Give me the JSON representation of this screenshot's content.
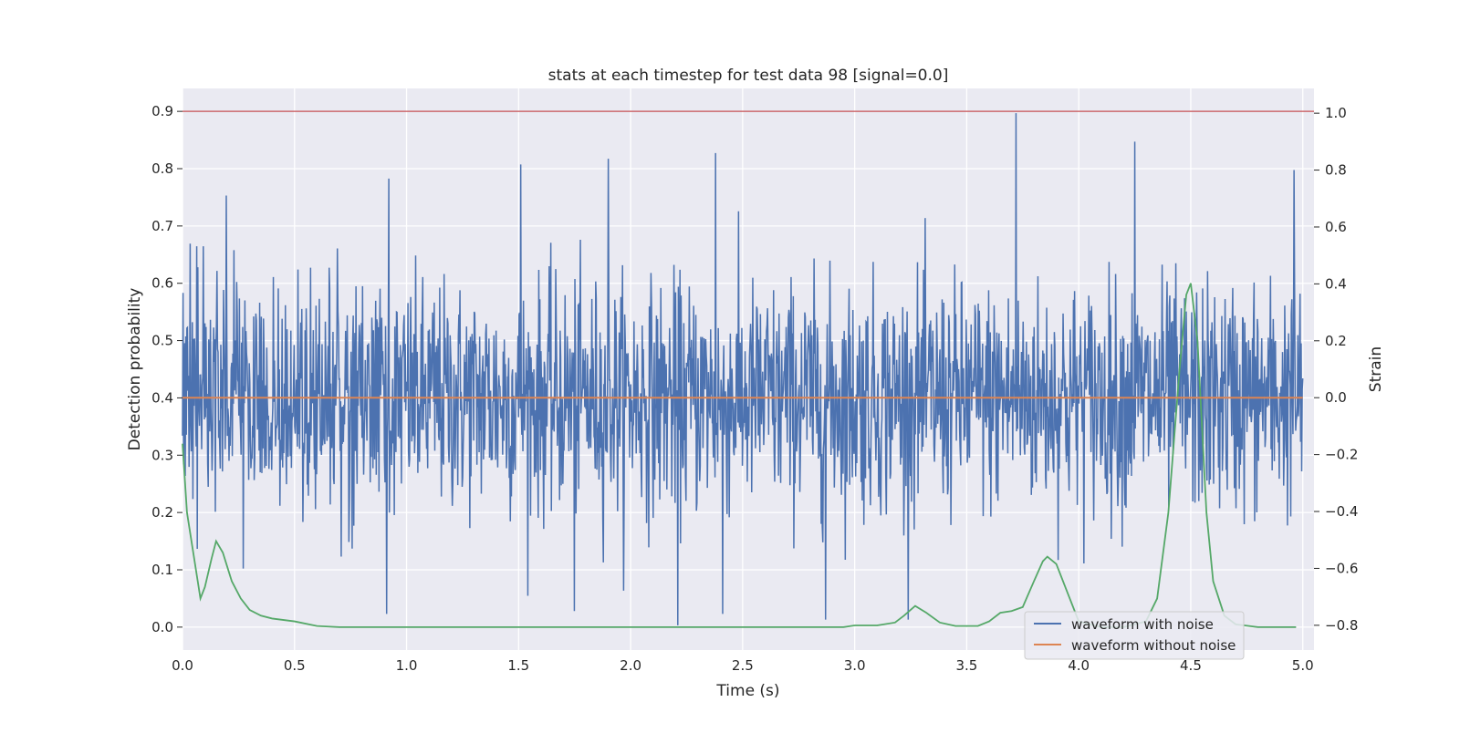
{
  "chart_data": {
    "type": "line",
    "title": "stats at each timestep for test data 98 [signal=0.0]",
    "xlabel": "Time (s)",
    "ylabel_left": "Detection probability",
    "ylabel_right": "Strain",
    "xlim": [
      0.0,
      5.05
    ],
    "ylim_left": [
      -0.04,
      0.94
    ],
    "ylim_right": [
      -0.887,
      1.087
    ],
    "x_ticks": [
      "0.0",
      "0.5",
      "1.0",
      "1.5",
      "2.0",
      "2.5",
      "3.0",
      "3.5",
      "4.0",
      "4.5",
      "5.0"
    ],
    "y_ticks_left": [
      "0.0",
      "0.1",
      "0.2",
      "0.3",
      "0.4",
      "0.5",
      "0.6",
      "0.7",
      "0.8",
      "0.9"
    ],
    "y_ticks_right": [
      "−0.8",
      "−0.6",
      "−0.4",
      "−0.2",
      "0.0",
      "0.2",
      "0.4",
      "0.6",
      "0.8",
      "1.0"
    ],
    "grid": true,
    "legend_position": "lower-right",
    "colors": {
      "background": "#eaeaf2",
      "grid": "#ffffff",
      "noise": "#4c72b0",
      "clean": "#dd8452",
      "probability": "#55a868",
      "threshold": "#c44e52"
    },
    "series": [
      {
        "name": "waveform with noise",
        "axis": "right",
        "generated": "gaussian noise, approx. 2048 samples over 0–5 s, range approx. −0.8 to 1.0",
        "spikes": [
          [
            0.92,
            0.77
          ],
          [
            1.51,
            0.82
          ],
          [
            1.9,
            0.84
          ],
          [
            2.38,
            0.86
          ],
          [
            3.72,
            1.0
          ],
          [
            4.25,
            0.9
          ],
          [
            4.96,
            0.8
          ],
          [
            2.21,
            -0.8
          ],
          [
            2.87,
            -0.78
          ],
          [
            0.91,
            -0.76
          ],
          [
            1.75,
            -0.75
          ],
          [
            2.41,
            -0.76
          ]
        ]
      },
      {
        "name": "waveform without noise",
        "axis": "right",
        "x": [
          0.0,
          5.0
        ],
        "values": [
          0.0,
          0.0
        ]
      },
      {
        "axis": "left",
        "x": [
          0.0,
          0.02,
          0.04,
          0.06,
          0.08,
          0.1,
          0.13,
          0.15,
          0.18,
          0.22,
          0.26,
          0.3,
          0.35,
          0.4,
          0.5,
          0.6,
          0.7,
          1.0,
          2.0,
          2.95,
          3.0,
          3.1,
          3.18,
          3.22,
          3.27,
          3.32,
          3.38,
          3.45,
          3.55,
          3.6,
          3.65,
          3.7,
          3.75,
          3.8,
          3.84,
          3.86,
          3.9,
          3.95,
          4.0,
          4.1,
          4.2,
          4.3,
          4.35,
          4.4,
          4.45,
          4.48,
          4.5,
          4.53,
          4.55,
          4.57,
          4.6,
          4.65,
          4.7,
          4.8,
          4.97
        ],
        "values": [
          0.32,
          0.2,
          0.15,
          0.1,
          0.05,
          0.07,
          0.12,
          0.15,
          0.13,
          0.08,
          0.05,
          0.03,
          0.02,
          0.015,
          0.01,
          0.002,
          0.0,
          0.0,
          0.0,
          0.0,
          0.003,
          0.003,
          0.008,
          0.02,
          0.037,
          0.025,
          0.008,
          0.002,
          0.002,
          0.01,
          0.025,
          0.028,
          0.035,
          0.08,
          0.115,
          0.123,
          0.11,
          0.06,
          0.01,
          0.0,
          0.0,
          0.01,
          0.05,
          0.2,
          0.45,
          0.58,
          0.6,
          0.5,
          0.35,
          0.2,
          0.08,
          0.02,
          0.005,
          0.0,
          0.0
        ]
      },
      {
        "axis": "left",
        "x": [
          0.0,
          5.05
        ],
        "values": [
          0.9,
          0.9
        ]
      }
    ]
  }
}
